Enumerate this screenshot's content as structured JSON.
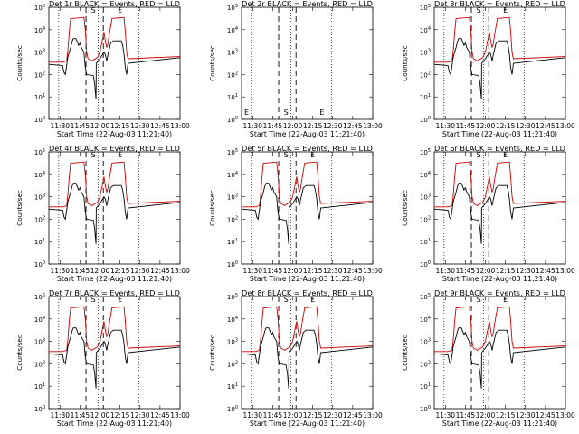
{
  "chart_data": [
    {
      "type": "line",
      "title": "Det 1r BLACK = Events, RED = LLD",
      "xlabel": "Start Time (22-Aug-03 11:21:40)",
      "ylabel": "Counts/sec",
      "yscale": "log",
      "ylim": [
        1,
        100000
      ],
      "y_tick_labels": [
        "10^0",
        "10^1",
        "10^2",
        "10^3",
        "10^4",
        "10^5"
      ],
      "x_tick_labels": [
        "11:30",
        "11:45",
        "12:00",
        "12:15",
        "12:30",
        "12:45",
        "13:00"
      ],
      "flags": [
        "S",
        "E"
      ],
      "has_data": true,
      "series": [
        {
          "name": "BLACK",
          "color": "#000000"
        },
        {
          "name": "RED",
          "color": "#cc0000"
        }
      ]
    },
    {
      "type": "line",
      "title": "Det 2r BLACK = Events, RED = LLD",
      "xlabel": "Start Time (22-Aug-03 11:21:40)",
      "ylabel": "Counts/sec",
      "yscale": "log",
      "ylim": [
        1,
        100000
      ],
      "y_tick_labels": [
        "10^0",
        "10^1",
        "10^2",
        "10^3",
        "10^4",
        "10^5"
      ],
      "x_tick_labels": [
        "11:30",
        "11:45",
        "12:00",
        "12:15",
        "12:30",
        "12:45",
        "13:00"
      ],
      "flags": [
        "S",
        "E"
      ],
      "has_data": false,
      "series": [
        {
          "name": "BLACK",
          "color": "#000000"
        },
        {
          "name": "RED",
          "color": "#cc0000"
        }
      ]
    },
    {
      "type": "line",
      "title": "Det 3r BLACK = Events, RED = LLD",
      "xlabel": "Start Time (22-Aug-03 11:21:40)",
      "ylabel": "Counts/sec",
      "yscale": "log",
      "ylim": [
        1,
        100000
      ],
      "y_tick_labels": [
        "10^0",
        "10^1",
        "10^2",
        "10^3",
        "10^4",
        "10^5"
      ],
      "x_tick_labels": [
        "11:30",
        "11:45",
        "12:00",
        "12:15",
        "12:30",
        "12:45",
        "13:00"
      ],
      "flags": [
        "S",
        "E"
      ],
      "has_data": true,
      "series": [
        {
          "name": "BLACK",
          "color": "#000000"
        },
        {
          "name": "RED",
          "color": "#cc0000"
        }
      ]
    },
    {
      "type": "line",
      "title": "Det 4r BLACK = Events, RED = LLD",
      "xlabel": "Start Time (22-Aug-03 11:21:40)",
      "ylabel": "Counts/sec",
      "yscale": "log",
      "ylim": [
        1,
        100000
      ],
      "y_tick_labels": [
        "10^0",
        "10^1",
        "10^2",
        "10^3",
        "10^4",
        "10^5"
      ],
      "x_tick_labels": [
        "11:30",
        "11:45",
        "12:00",
        "12:15",
        "12:30",
        "12:45",
        "13:00"
      ],
      "flags": [
        "S",
        "E"
      ],
      "has_data": true,
      "series": [
        {
          "name": "BLACK",
          "color": "#000000"
        },
        {
          "name": "RED",
          "color": "#cc0000"
        }
      ]
    },
    {
      "type": "line",
      "title": "Det 5r BLACK = Events, RED = LLD",
      "xlabel": "Start Time (22-Aug-03 11:21:40)",
      "ylabel": "Counts/sec",
      "yscale": "log",
      "ylim": [
        1,
        100000
      ],
      "y_tick_labels": [
        "10^0",
        "10^1",
        "10^2",
        "10^3",
        "10^4",
        "10^5"
      ],
      "x_tick_labels": [
        "11:30",
        "11:45",
        "12:00",
        "12:15",
        "12:30",
        "12:45",
        "13:00"
      ],
      "flags": [
        "S",
        "E"
      ],
      "has_data": true,
      "series": [
        {
          "name": "BLACK",
          "color": "#000000"
        },
        {
          "name": "RED",
          "color": "#cc0000"
        }
      ]
    },
    {
      "type": "line",
      "title": "Det 6r BLACK = Events, RED = LLD",
      "xlabel": "Start Time (22-Aug-03 11:21:40)",
      "ylabel": "Counts/sec",
      "yscale": "log",
      "ylim": [
        1,
        100000
      ],
      "y_tick_labels": [
        "10^0",
        "10^1",
        "10^2",
        "10^3",
        "10^4",
        "10^5"
      ],
      "x_tick_labels": [
        "11:30",
        "11:45",
        "12:00",
        "12:15",
        "12:30",
        "12:45",
        "13:00"
      ],
      "flags": [
        "S",
        "E"
      ],
      "has_data": true,
      "series": [
        {
          "name": "BLACK",
          "color": "#000000"
        },
        {
          "name": "RED",
          "color": "#cc0000"
        }
      ]
    },
    {
      "type": "line",
      "title": "Det 7r BLACK = Events, RED = LLD",
      "xlabel": "Start Time (22-Aug-03 11:21:40)",
      "ylabel": "Counts/sec",
      "yscale": "log",
      "ylim": [
        1,
        100000
      ],
      "y_tick_labels": [
        "10^0",
        "10^1",
        "10^2",
        "10^3",
        "10^4",
        "10^5"
      ],
      "x_tick_labels": [
        "11:30",
        "11:45",
        "12:00",
        "12:15",
        "12:30",
        "12:45",
        "13:00"
      ],
      "flags": [
        "S",
        "E"
      ],
      "has_data": true,
      "series": [
        {
          "name": "BLACK",
          "color": "#000000"
        },
        {
          "name": "RED",
          "color": "#cc0000"
        }
      ]
    },
    {
      "type": "line",
      "title": "Det 8r BLACK = Events, RED = LLD",
      "xlabel": "Start Time (22-Aug-03 11:21:40)",
      "ylabel": "Counts/sec",
      "yscale": "log",
      "ylim": [
        1,
        100000
      ],
      "y_tick_labels": [
        "10^0",
        "10^1",
        "10^2",
        "10^3",
        "10^4",
        "10^5"
      ],
      "x_tick_labels": [
        "11:30",
        "11:45",
        "12:00",
        "12:15",
        "12:30",
        "12:45",
        "13:00"
      ],
      "flags": [
        "S",
        "E"
      ],
      "has_data": true,
      "series": [
        {
          "name": "BLACK",
          "color": "#000000"
        },
        {
          "name": "RED",
          "color": "#cc0000"
        }
      ]
    },
    {
      "type": "line",
      "title": "Det 9r BLACK = Events, RED = LLD",
      "xlabel": "Start Time (22-Aug-03 11:21:40)",
      "ylabel": "Counts/sec",
      "yscale": "log",
      "ylim": [
        1,
        100000
      ],
      "y_tick_labels": [
        "10^0",
        "10^1",
        "10^2",
        "10^3",
        "10^4",
        "10^5"
      ],
      "x_tick_labels": [
        "11:30",
        "11:45",
        "12:00",
        "12:15",
        "12:30",
        "12:45",
        "13:00"
      ],
      "flags": [
        "S",
        "E"
      ],
      "has_data": true,
      "series": [
        {
          "name": "BLACK",
          "color": "#000000"
        },
        {
          "name": "RED",
          "color": "#cc0000"
        }
      ]
    }
  ]
}
